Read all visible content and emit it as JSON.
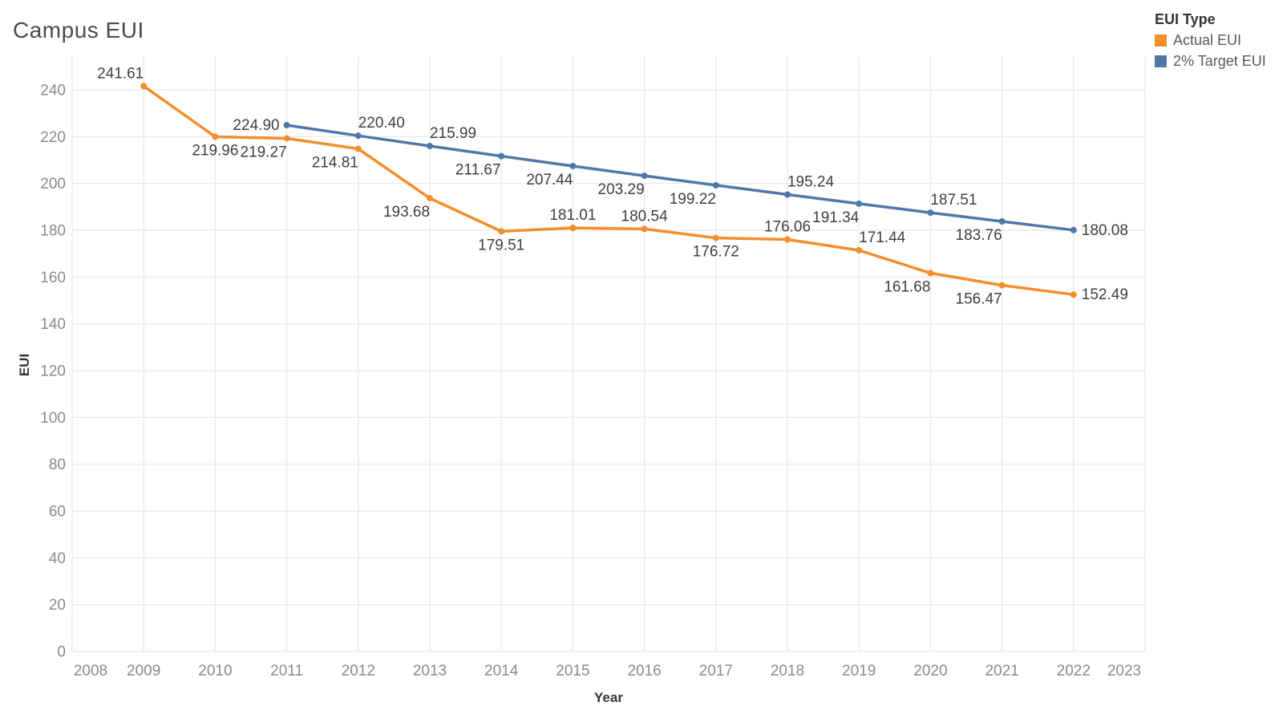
{
  "chart_data": {
    "type": "line",
    "title": "Campus EUI",
    "xlabel": "Year",
    "ylabel": "EUI",
    "xlim": [
      2008,
      2023
    ],
    "ylim": [
      0,
      240
    ],
    "x_ticks": [
      2008,
      2009,
      2010,
      2011,
      2012,
      2013,
      2014,
      2015,
      2016,
      2017,
      2018,
      2019,
      2020,
      2021,
      2022,
      2023
    ],
    "y_ticks": [
      0,
      20,
      40,
      60,
      80,
      100,
      120,
      140,
      160,
      180,
      200,
      220,
      240
    ],
    "grid": true,
    "grid_color": "#ebebeb",
    "legend": {
      "title": "EUI Type",
      "position": "top-right"
    },
    "series": [
      {
        "name": "Actual EUI",
        "color": "#f28e2b",
        "points": [
          {
            "year": 2009,
            "value": 241.61,
            "label": "241.61",
            "label_pos": "above-left"
          },
          {
            "year": 2010,
            "value": 219.96,
            "label": "219.96",
            "label_pos": "below"
          },
          {
            "year": 2011,
            "value": 219.27,
            "label": "219.27",
            "label_pos": "below-left"
          },
          {
            "year": 2012,
            "value": 214.81,
            "label": "214.81",
            "label_pos": "below-left"
          },
          {
            "year": 2013,
            "value": 193.68,
            "label": "193.68",
            "label_pos": "below-left"
          },
          {
            "year": 2014,
            "value": 179.51,
            "label": "179.51",
            "label_pos": "below"
          },
          {
            "year": 2015,
            "value": 181.01,
            "label": "181.01",
            "label_pos": "above"
          },
          {
            "year": 2016,
            "value": 180.54,
            "label": "180.54",
            "label_pos": "above"
          },
          {
            "year": 2017,
            "value": 176.72,
            "label": "176.72",
            "label_pos": "below"
          },
          {
            "year": 2018,
            "value": 176.06,
            "label": "176.06",
            "label_pos": "above"
          },
          {
            "year": 2019,
            "value": 171.44,
            "label": "171.44",
            "label_pos": "above-right"
          },
          {
            "year": 2020,
            "value": 161.68,
            "label": "161.68",
            "label_pos": "below-left"
          },
          {
            "year": 2021,
            "value": 156.47,
            "label": "156.47",
            "label_pos": "below-left"
          },
          {
            "year": 2022,
            "value": 152.49,
            "label": "152.49",
            "label_pos": "right"
          }
        ]
      },
      {
        "name": "2% Target EUI",
        "color": "#4e79a7",
        "points": [
          {
            "year": 2011,
            "value": 224.9,
            "label": "224.90",
            "label_pos": "left"
          },
          {
            "year": 2012,
            "value": 220.4,
            "label": "220.40",
            "label_pos": "above-right"
          },
          {
            "year": 2013,
            "value": 215.99,
            "label": "215.99",
            "label_pos": "above-right"
          },
          {
            "year": 2014,
            "value": 211.67,
            "label": "211.67",
            "label_pos": "below-left"
          },
          {
            "year": 2015,
            "value": 207.44,
            "label": "207.44",
            "label_pos": "below-left"
          },
          {
            "year": 2016,
            "value": 203.29,
            "label": "203.29",
            "label_pos": "below-left"
          },
          {
            "year": 2017,
            "value": 199.22,
            "label": "199.22",
            "label_pos": "below-left"
          },
          {
            "year": 2018,
            "value": 195.24,
            "label": "195.24",
            "label_pos": "above-right"
          },
          {
            "year": 2019,
            "value": 191.34,
            "label": "191.34",
            "label_pos": "below-left"
          },
          {
            "year": 2020,
            "value": 187.51,
            "label": "187.51",
            "label_pos": "above-right"
          },
          {
            "year": 2021,
            "value": 183.76,
            "label": "183.76",
            "label_pos": "below-left"
          },
          {
            "year": 2022,
            "value": 180.08,
            "label": "180.08",
            "label_pos": "right"
          }
        ]
      }
    ]
  }
}
